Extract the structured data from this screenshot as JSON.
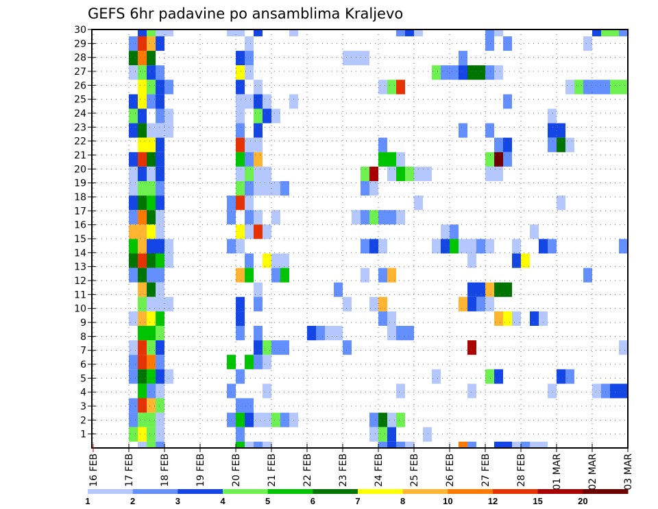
{
  "chart_data": {
    "type": "heatmap",
    "title": "GEFS 6hr padavine po ansamblima Kraljevo",
    "xlabel": "",
    "ylabel": "",
    "x_ticks": [
      {
        "day": "16",
        "month": "FEB"
      },
      {
        "day": "17",
        "month": "FEB"
      },
      {
        "day": "18",
        "month": "FEB"
      },
      {
        "day": "19",
        "month": "FEB"
      },
      {
        "day": "20",
        "month": "FEB"
      },
      {
        "day": "21",
        "month": "FEB"
      },
      {
        "day": "22",
        "month": "FEB"
      },
      {
        "day": "23",
        "month": "FEB"
      },
      {
        "day": "24",
        "month": "FEB"
      },
      {
        "day": "25",
        "month": "FEB"
      },
      {
        "day": "26",
        "month": "FEB"
      },
      {
        "day": "27",
        "month": "FEB"
      },
      {
        "day": "28",
        "month": "FEB"
      },
      {
        "day": "01",
        "month": "MAR"
      },
      {
        "day": "02",
        "month": "MAR"
      },
      {
        "day": "03",
        "month": "MAR"
      }
    ],
    "x_step": "6hr",
    "steps_per_day": 4,
    "y_ticks": [
      "1",
      "2",
      "3",
      "4",
      "5",
      "6",
      "7",
      "8",
      "9",
      "10",
      "11",
      "12",
      "13",
      "14",
      "15",
      "16",
      "17",
      "18",
      "19",
      "20",
      "21",
      "22",
      "23",
      "24",
      "25",
      "26",
      "27",
      "28",
      "29",
      "30"
    ],
    "grid": true,
    "colorbar": {
      "position": "bottom",
      "labels": [
        "1",
        "2",
        "3",
        "4",
        "5",
        "6",
        "7",
        "8",
        "10",
        "12",
        "15",
        "20"
      ],
      "colors": [
        "#b4c8ff",
        "#6490ff",
        "#1446e6",
        "#6ef050",
        "#00c400",
        "#007400",
        "#ffff00",
        "#ffb432",
        "#ff7800",
        "#e63200",
        "#aa0000",
        "#6e0000"
      ]
    },
    "cells_note": "rows listed top to bottom; each cell is [6hr step index from 16 FEB 00z, color class 1-12]",
    "rows": [
      [
        [
          5,
          3
        ],
        [
          6,
          4
        ],
        [
          7,
          1
        ],
        [
          8,
          1
        ],
        [
          15,
          1
        ],
        [
          16,
          1
        ],
        [
          18,
          3
        ],
        [
          22,
          1
        ],
        [
          34,
          2
        ],
        [
          35,
          3
        ],
        [
          36,
          1
        ],
        [
          44,
          2
        ],
        [
          45,
          1
        ],
        [
          56,
          3
        ],
        [
          57,
          4
        ],
        [
          58,
          4
        ],
        [
          59,
          2
        ]
      ],
      [
        [
          4,
          2
        ],
        [
          5,
          10
        ],
        [
          6,
          8
        ],
        [
          7,
          3
        ],
        [
          17,
          1
        ],
        [
          44,
          2
        ],
        [
          46,
          2
        ],
        [
          55,
          1
        ]
      ],
      [
        [
          4,
          6
        ],
        [
          5,
          9
        ],
        [
          6,
          6
        ],
        [
          16,
          3
        ],
        [
          17,
          2
        ],
        [
          28,
          1
        ],
        [
          29,
          1
        ],
        [
          30,
          1
        ],
        [
          41,
          2
        ]
      ],
      [
        [
          4,
          1
        ],
        [
          5,
          4
        ],
        [
          6,
          3
        ],
        [
          7,
          2
        ],
        [
          16,
          7
        ],
        [
          17,
          1
        ],
        [
          38,
          4
        ],
        [
          39,
          2
        ],
        [
          40,
          2
        ],
        [
          41,
          3
        ],
        [
          42,
          6
        ],
        [
          43,
          6
        ],
        [
          44,
          2
        ],
        [
          45,
          1
        ]
      ],
      [
        [
          5,
          7
        ],
        [
          6,
          4
        ],
        [
          7,
          3
        ],
        [
          8,
          2
        ],
        [
          16,
          3
        ],
        [
          18,
          1
        ],
        [
          32,
          1
        ],
        [
          33,
          4
        ],
        [
          34,
          10
        ],
        [
          53,
          1
        ],
        [
          54,
          4
        ],
        [
          55,
          2
        ],
        [
          56,
          2
        ],
        [
          57,
          2
        ],
        [
          58,
          4
        ],
        [
          59,
          4
        ]
      ],
      [
        [
          4,
          3
        ],
        [
          5,
          7
        ],
        [
          6,
          2
        ],
        [
          7,
          3
        ],
        [
          16,
          1
        ],
        [
          17,
          1
        ],
        [
          18,
          3
        ],
        [
          19,
          1
        ],
        [
          22,
          1
        ],
        [
          46,
          2
        ]
      ],
      [
        [
          4,
          4
        ],
        [
          5,
          3
        ],
        [
          7,
          2
        ],
        [
          8,
          1
        ],
        [
          16,
          1
        ],
        [
          18,
          4
        ],
        [
          19,
          3
        ],
        [
          20,
          1
        ],
        [
          51,
          1
        ]
      ],
      [
        [
          4,
          3
        ],
        [
          5,
          6
        ],
        [
          6,
          1
        ],
        [
          7,
          1
        ],
        [
          8,
          1
        ],
        [
          16,
          2
        ],
        [
          18,
          3
        ],
        [
          41,
          2
        ],
        [
          44,
          2
        ],
        [
          51,
          3
        ],
        [
          52,
          3
        ]
      ],
      [
        [
          5,
          7
        ],
        [
          6,
          7
        ],
        [
          7,
          3
        ],
        [
          16,
          10
        ],
        [
          17,
          1
        ],
        [
          18,
          1
        ],
        [
          32,
          2
        ],
        [
          45,
          2
        ],
        [
          46,
          3
        ],
        [
          51,
          2
        ],
        [
          52,
          6
        ],
        [
          53,
          1
        ]
      ],
      [
        [
          4,
          3
        ],
        [
          5,
          10
        ],
        [
          6,
          6
        ],
        [
          7,
          3
        ],
        [
          16,
          5
        ],
        [
          17,
          2
        ],
        [
          18,
          8
        ],
        [
          32,
          5
        ],
        [
          33,
          5
        ],
        [
          34,
          1
        ],
        [
          44,
          4
        ],
        [
          45,
          12
        ],
        [
          46,
          2
        ]
      ],
      [
        [
          4,
          1
        ],
        [
          5,
          3
        ],
        [
          6,
          1
        ],
        [
          7,
          3
        ],
        [
          16,
          1
        ],
        [
          17,
          4
        ],
        [
          18,
          1
        ],
        [
          19,
          1
        ],
        [
          30,
          4
        ],
        [
          31,
          11
        ],
        [
          33,
          1
        ],
        [
          34,
          5
        ],
        [
          35,
          4
        ],
        [
          36,
          1
        ],
        [
          37,
          1
        ],
        [
          44,
          1
        ],
        [
          45,
          1
        ]
      ],
      [
        [
          4,
          1
        ],
        [
          5,
          4
        ],
        [
          6,
          4
        ],
        [
          7,
          2
        ],
        [
          16,
          4
        ],
        [
          17,
          2
        ],
        [
          18,
          1
        ],
        [
          19,
          1
        ],
        [
          20,
          1
        ],
        [
          21,
          2
        ],
        [
          30,
          2
        ],
        [
          31,
          1
        ]
      ],
      [
        [
          4,
          3
        ],
        [
          5,
          6
        ],
        [
          6,
          5
        ],
        [
          7,
          3
        ],
        [
          15,
          2
        ],
        [
          16,
          10
        ],
        [
          17,
          1
        ],
        [
          36,
          1
        ],
        [
          52,
          1
        ]
      ],
      [
        [
          4,
          2
        ],
        [
          5,
          9
        ],
        [
          6,
          6
        ],
        [
          7,
          1
        ],
        [
          15,
          2
        ],
        [
          17,
          2
        ],
        [
          18,
          1
        ],
        [
          20,
          1
        ],
        [
          29,
          1
        ],
        [
          30,
          2
        ],
        [
          31,
          4
        ],
        [
          32,
          2
        ],
        [
          33,
          2
        ],
        [
          34,
          1
        ]
      ],
      [
        [
          4,
          8
        ],
        [
          5,
          8
        ],
        [
          6,
          7
        ],
        [
          7,
          1
        ],
        [
          16,
          7
        ],
        [
          17,
          1
        ],
        [
          18,
          10
        ],
        [
          19,
          1
        ],
        [
          39,
          1
        ],
        [
          40,
          2
        ],
        [
          49,
          1
        ]
      ],
      [
        [
          4,
          5
        ],
        [
          5,
          8
        ],
        [
          6,
          3
        ],
        [
          7,
          3
        ],
        [
          8,
          1
        ],
        [
          15,
          2
        ],
        [
          16,
          1
        ],
        [
          30,
          2
        ],
        [
          31,
          3
        ],
        [
          32,
          1
        ],
        [
          38,
          1
        ],
        [
          39,
          3
        ],
        [
          40,
          5
        ],
        [
          41,
          1
        ],
        [
          42,
          1
        ],
        [
          43,
          2
        ],
        [
          44,
          1
        ],
        [
          47,
          1
        ],
        [
          50,
          3
        ],
        [
          51,
          2
        ],
        [
          59,
          2
        ]
      ],
      [
        [
          4,
          6
        ],
        [
          5,
          10
        ],
        [
          6,
          6
        ],
        [
          7,
          5
        ],
        [
          8,
          1
        ],
        [
          17,
          2
        ],
        [
          19,
          7
        ],
        [
          20,
          1
        ],
        [
          21,
          1
        ],
        [
          42,
          1
        ],
        [
          47,
          3
        ],
        [
          48,
          7
        ]
      ],
      [
        [
          4,
          2
        ],
        [
          5,
          6
        ],
        [
          6,
          2
        ],
        [
          7,
          2
        ],
        [
          16,
          8
        ],
        [
          17,
          5
        ],
        [
          20,
          2
        ],
        [
          21,
          5
        ],
        [
          30,
          1
        ],
        [
          32,
          2
        ],
        [
          33,
          8
        ],
        [
          55,
          2
        ]
      ],
      [
        [
          5,
          8
        ],
        [
          6,
          6
        ],
        [
          7,
          1
        ],
        [
          18,
          1
        ],
        [
          27,
          2
        ],
        [
          42,
          3
        ],
        [
          43,
          3
        ],
        [
          44,
          8
        ],
        [
          45,
          6
        ],
        [
          46,
          6
        ]
      ],
      [
        [
          5,
          4
        ],
        [
          6,
          1
        ],
        [
          7,
          1
        ],
        [
          8,
          1
        ],
        [
          16,
          3
        ],
        [
          18,
          2
        ],
        [
          28,
          1
        ],
        [
          31,
          1
        ],
        [
          32,
          8
        ],
        [
          41,
          8
        ],
        [
          42,
          3
        ],
        [
          43,
          2
        ],
        [
          44,
          1
        ]
      ],
      [
        [
          4,
          1
        ],
        [
          5,
          8
        ],
        [
          6,
          7
        ],
        [
          7,
          5
        ],
        [
          16,
          3
        ],
        [
          32,
          2
        ],
        [
          33,
          1
        ],
        [
          45,
          8
        ],
        [
          46,
          7
        ],
        [
          47,
          1
        ],
        [
          49,
          3
        ],
        [
          50,
          1
        ]
      ],
      [
        [
          5,
          5
        ],
        [
          6,
          5
        ],
        [
          7,
          4
        ],
        [
          16,
          2
        ],
        [
          18,
          2
        ],
        [
          24,
          3
        ],
        [
          25,
          2
        ],
        [
          26,
          1
        ],
        [
          27,
          1
        ],
        [
          33,
          1
        ],
        [
          34,
          2
        ],
        [
          35,
          2
        ]
      ],
      [
        [
          4,
          1
        ],
        [
          5,
          10
        ],
        [
          6,
          4
        ],
        [
          7,
          3
        ],
        [
          18,
          3
        ],
        [
          19,
          4
        ],
        [
          20,
          2
        ],
        [
          21,
          2
        ],
        [
          28,
          2
        ],
        [
          42,
          11
        ],
        [
          59,
          1
        ]
      ],
      [
        [
          4,
          2
        ],
        [
          5,
          10
        ],
        [
          6,
          9
        ],
        [
          7,
          2
        ],
        [
          15,
          5
        ],
        [
          17,
          5
        ],
        [
          18,
          2
        ],
        [
          19,
          1
        ]
      ],
      [
        [
          4,
          2
        ],
        [
          5,
          6
        ],
        [
          6,
          5
        ],
        [
          7,
          3
        ],
        [
          8,
          1
        ],
        [
          16,
          2
        ],
        [
          38,
          1
        ],
        [
          44,
          4
        ],
        [
          45,
          3
        ],
        [
          52,
          3
        ],
        [
          53,
          2
        ]
      ],
      [
        [
          5,
          5
        ],
        [
          6,
          2
        ],
        [
          7,
          1
        ],
        [
          15,
          2
        ],
        [
          19,
          1
        ],
        [
          34,
          1
        ],
        [
          42,
          1
        ],
        [
          51,
          1
        ],
        [
          56,
          1
        ],
        [
          57,
          2
        ],
        [
          58,
          3
        ],
        [
          59,
          3
        ]
      ],
      [
        [
          4,
          2
        ],
        [
          5,
          10
        ],
        [
          6,
          8
        ],
        [
          7,
          4
        ],
        [
          16,
          2
        ],
        [
          17,
          2
        ]
      ],
      [
        [
          4,
          2
        ],
        [
          5,
          4
        ],
        [
          6,
          4
        ],
        [
          7,
          1
        ],
        [
          15,
          2
        ],
        [
          16,
          5
        ],
        [
          17,
          3
        ],
        [
          18,
          1
        ],
        [
          19,
          1
        ],
        [
          20,
          4
        ],
        [
          21,
          2
        ],
        [
          22,
          1
        ],
        [
          31,
          2
        ],
        [
          32,
          6
        ],
        [
          33,
          1
        ],
        [
          34,
          4
        ]
      ],
      [
        [
          4,
          4
        ],
        [
          5,
          7
        ],
        [
          6,
          4
        ],
        [
          7,
          1
        ],
        [
          16,
          2
        ],
        [
          31,
          1
        ],
        [
          32,
          4
        ],
        [
          33,
          3
        ],
        [
          37,
          1
        ]
      ],
      [
        [
          5,
          1
        ],
        [
          6,
          4
        ],
        [
          7,
          2
        ],
        [
          16,
          5
        ],
        [
          17,
          1
        ],
        [
          18,
          2
        ],
        [
          19,
          1
        ],
        [
          32,
          2
        ],
        [
          33,
          3
        ],
        [
          34,
          2
        ],
        [
          35,
          1
        ],
        [
          41,
          9
        ],
        [
          42,
          2
        ],
        [
          45,
          3
        ],
        [
          46,
          3
        ],
        [
          47,
          1
        ],
        [
          48,
          2
        ],
        [
          49,
          1
        ],
        [
          50,
          1
        ]
      ]
    ]
  }
}
